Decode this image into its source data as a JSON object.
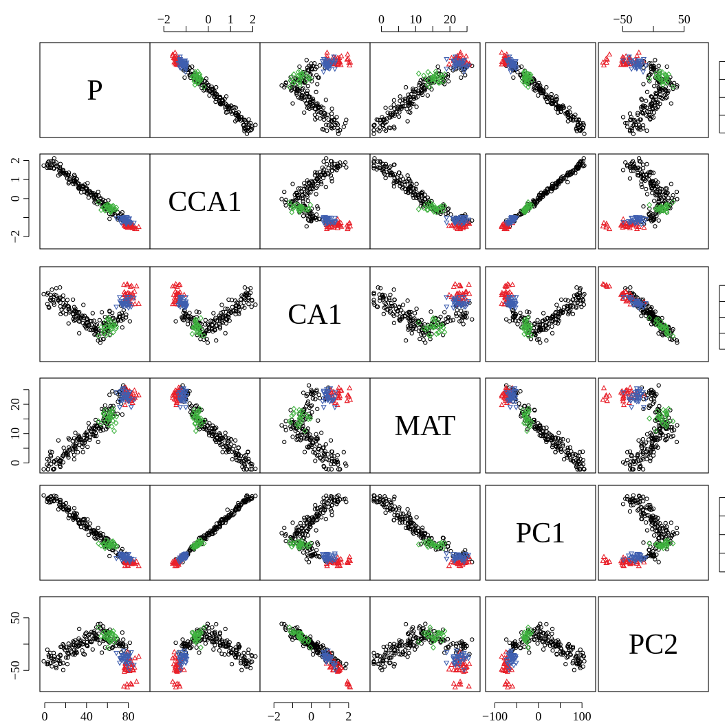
{
  "chart_data": {
    "type": "scatter",
    "variables": [
      "P",
      "CCA1",
      "CA1",
      "MAT",
      "PC1",
      "PC2"
    ],
    "ranges": {
      "P": [
        -2,
        98
      ],
      "CCA1": [
        -2.5,
        2.2
      ],
      "CA1": [
        -2.6,
        3.0
      ],
      "MAT": [
        -2.5,
        28
      ],
      "PC1": [
        -115,
        125
      ],
      "PC2": [
        -85,
        85
      ]
    },
    "tick_labels": {
      "P": [
        {
          "v": 0,
          "t": "0"
        },
        {
          "v": 40,
          "t": "40"
        },
        {
          "v": 80,
          "t": "80"
        }
      ],
      "CCA1": [
        {
          "v": -2,
          "t": "−2"
        },
        {
          "v": 0,
          "t": "0"
        },
        {
          "v": 1,
          "t": "1"
        },
        {
          "v": 2,
          "t": "2"
        }
      ],
      "CA1": [
        {
          "v": -2,
          "t": "−2"
        },
        {
          "v": 0,
          "t": "0"
        },
        {
          "v": 2,
          "t": "2"
        }
      ],
      "MAT": [
        {
          "v": 0,
          "t": "0"
        },
        {
          "v": 10,
          "t": "10"
        },
        {
          "v": 20,
          "t": "20"
        }
      ],
      "PC1": [
        {
          "v": -100,
          "t": "−100"
        },
        {
          "v": 0,
          "t": "0"
        },
        {
          "v": 100,
          "t": "100"
        }
      ],
      "PC2": [
        {
          "v": -50,
          "t": "−50"
        },
        {
          "v": 50,
          "t": "50"
        }
      ]
    },
    "minor_ticks": {
      "P": [
        0,
        20,
        40,
        60,
        80
      ],
      "CCA1": [
        -2,
        -1,
        0,
        1,
        2
      ],
      "CA1": [
        -2,
        -1,
        0,
        1,
        2
      ],
      "MAT": [
        0,
        5,
        10,
        15,
        20,
        25
      ],
      "PC1": [
        -100,
        -50,
        0,
        50,
        100
      ],
      "PC2": [
        -50,
        0,
        50
      ]
    },
    "groups": [
      {
        "symbol": "circle",
        "color": "#000000",
        "count": 170
      },
      {
        "symbol": "triangle-up",
        "color": "#e8202a",
        "count": 35
      },
      {
        "symbol": "diamond",
        "color": "#3fb23f",
        "count": 25
      },
      {
        "symbol": "triangle-down",
        "color": "#3f5fb0",
        "count": 30
      }
    ],
    "layout": "pairs-matrix",
    "grid": false,
    "legend": "none"
  }
}
